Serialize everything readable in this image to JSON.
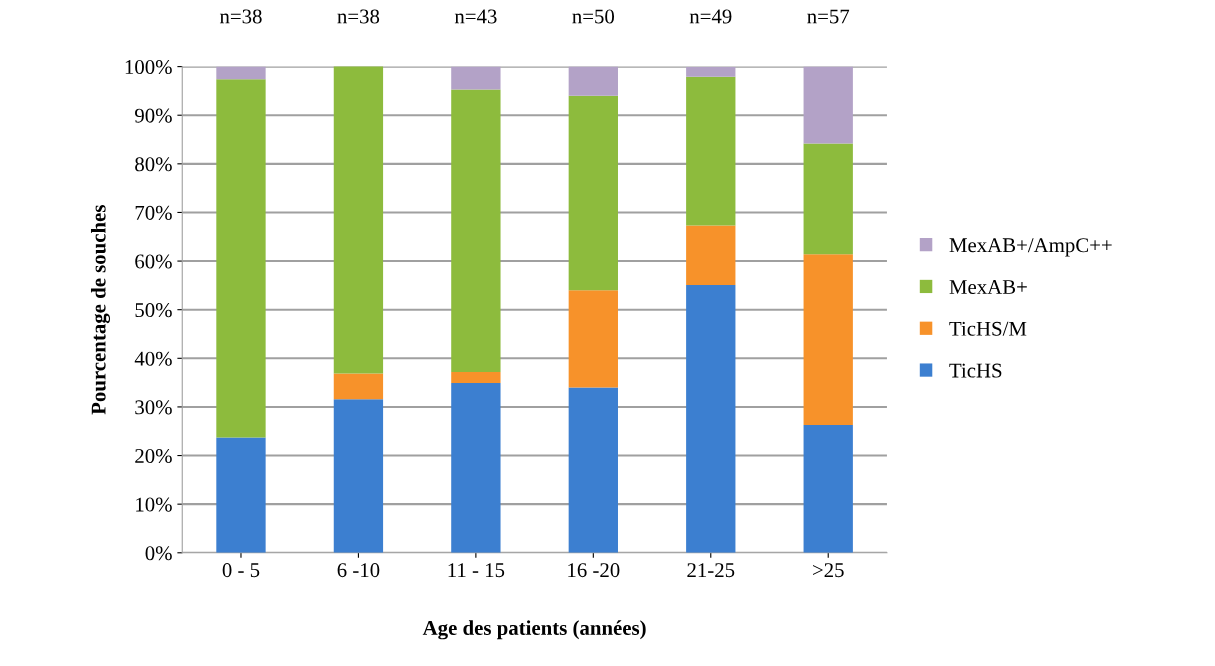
{
  "chart_data": {
    "type": "bar",
    "stacked": true,
    "xlabel": "Age des patients (années)",
    "ylabel": "Pourcentage de souches",
    "categories": [
      "0 - 5",
      "6 -10",
      "11 - 15",
      "16 -20",
      "21-25",
      ">25"
    ],
    "series": [
      {
        "name": "TicHS",
        "color": "#3c7fd0",
        "values": [
          23.7,
          31.6,
          34.9,
          34.0,
          55.1,
          26.3
        ]
      },
      {
        "name": "TicHS/M",
        "color": "#f7922a",
        "values": [
          0,
          5.3,
          2.3,
          20.0,
          12.2,
          35.1
        ]
      },
      {
        "name": "MexAB+",
        "color": "#8dbb3d",
        "values": [
          73.7,
          63.2,
          58.1,
          40.0,
          30.6,
          22.8
        ]
      },
      {
        "name": "MexAB+/AmpC++",
        "color": "#b3a2c7",
        "values": [
          2.6,
          0,
          4.7,
          6.0,
          2.0,
          15.8
        ]
      }
    ],
    "annotations": [
      {
        "text": "n=38",
        "x": "0 - 5",
        "y": 100
      },
      {
        "text": "n=38",
        "x": "6 -10",
        "y": 100
      },
      {
        "text": "n=43",
        "x": "11 - 15",
        "y": 100
      },
      {
        "text": "n=50",
        "x": "16 -20",
        "y": 100
      },
      {
        "text": "n=49",
        "x": "21-25",
        "y": 100
      },
      {
        "text": "n=57",
        "x": ">25",
        "y": 100
      }
    ],
    "ylim": [
      0,
      100
    ],
    "yticks": [
      {
        "value": 0,
        "label": "0%"
      },
      {
        "value": 10,
        "label": "10%"
      },
      {
        "value": 20,
        "label": "20%"
      },
      {
        "value": 30,
        "label": "30%"
      },
      {
        "value": 40,
        "label": "40%"
      },
      {
        "value": 50,
        "label": "50%"
      },
      {
        "value": 60,
        "label": "60%"
      },
      {
        "value": 70,
        "label": "70%"
      },
      {
        "value": 80,
        "label": "80%"
      },
      {
        "value": 90,
        "label": "90%"
      },
      {
        "value": 100,
        "label": "100%"
      }
    ],
    "grid": "y",
    "legend": "right"
  }
}
